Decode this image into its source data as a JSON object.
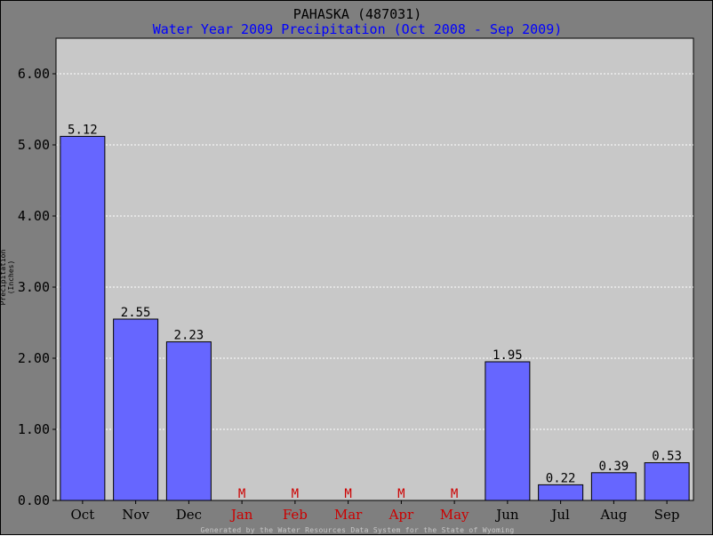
{
  "chart_data": {
    "type": "bar",
    "title": "PAHASKA (487031)",
    "subtitle": "Water Year 2009 Precipitation (Oct 2008 - Sep 2009)",
    "ylabel": "Precipitation (Inches)",
    "xlabel": "",
    "ylim": [
      0,
      6.5
    ],
    "yticks": [
      "0.00",
      "1.00",
      "2.00",
      "3.00",
      "4.00",
      "5.00",
      "6.00"
    ],
    "categories": [
      "Oct",
      "Nov",
      "Dec",
      "Jan",
      "Feb",
      "Mar",
      "Apr",
      "May",
      "Jun",
      "Jul",
      "Aug",
      "Sep"
    ],
    "values": [
      5.12,
      2.55,
      2.23,
      null,
      null,
      null,
      null,
      null,
      1.95,
      0.22,
      0.39,
      0.53
    ],
    "value_labels": [
      "5.12",
      "2.55",
      "2.23",
      "M",
      "M",
      "M",
      "M",
      "M",
      "1.95",
      "0.22",
      "0.39",
      "0.53"
    ],
    "missing_marker": "M",
    "grid": true,
    "legend": "none",
    "colors": {
      "bar": "#6666ff",
      "missing": "#cc0000",
      "plot_bg": "#c8c8c8",
      "frame_bg": "#7f7f7f",
      "subtitle": "#0000ff"
    }
  },
  "footer": "Generated by the Water Resources Data System for the State of Wyoming"
}
